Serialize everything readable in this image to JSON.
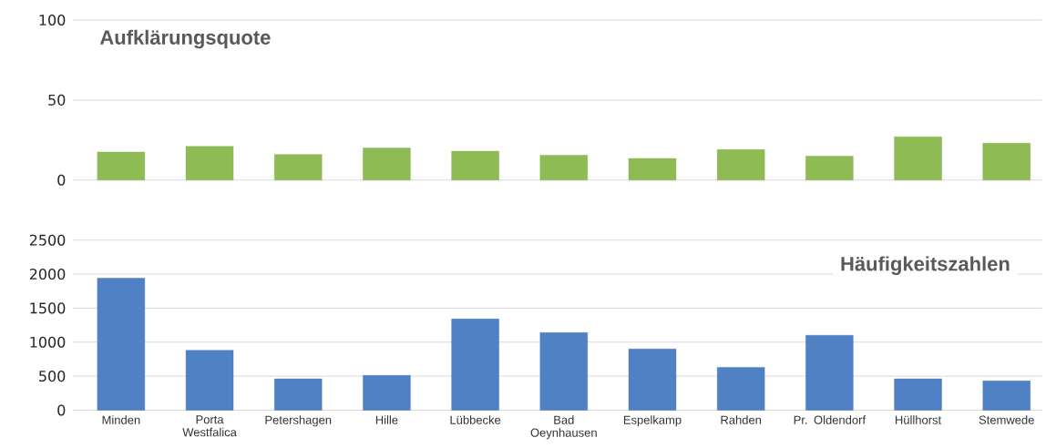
{
  "chart_data": [
    {
      "type": "bar",
      "title": "Aufklärungsquote",
      "values": [
        17.5,
        21,
        16,
        20,
        18,
        15.5,
        13.5,
        19,
        15,
        27,
        23
      ],
      "color": "#8fbb55",
      "ylim": [
        0,
        100
      ],
      "yticks": [
        0,
        50,
        100
      ],
      "grid": "y",
      "tick_labels": "y"
    },
    {
      "type": "bar",
      "title": "Häufigkeitszahlen",
      "categories": [
        "Minden",
        "Porta Westfalica",
        "Petershagen",
        "Hille",
        "Lübbecke",
        "Bad Oeynhausen",
        "Espelkamp",
        "Rahden",
        "Pr. Oldendorf",
        "Hüllhorst",
        "Stemwede"
      ],
      "values": [
        1940,
        880,
        460,
        510,
        1340,
        1140,
        900,
        630,
        1100,
        460,
        430
      ],
      "color": "#4f81c4",
      "ylim": [
        0,
        2500
      ],
      "yticks": [
        0,
        500,
        1000,
        1500,
        2000,
        2500
      ],
      "grid": "y"
    }
  ]
}
